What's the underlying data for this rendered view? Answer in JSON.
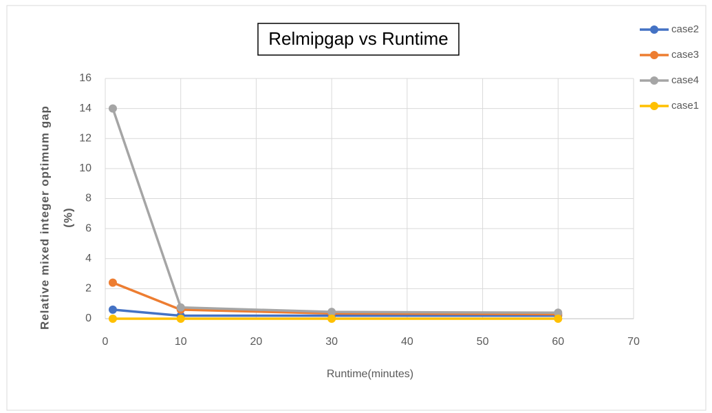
{
  "chart_data": {
    "type": "line",
    "title": "Relmipgap vs Runtime",
    "xlabel": "Runtime(minutes)",
    "ylabel": [
      "Relative mixed integer optimum gap",
      "(%)"
    ],
    "x": [
      1,
      10,
      30,
      60
    ],
    "series": [
      {
        "name": "case2",
        "color": "#4472c4",
        "values": [
          0.6,
          0.2,
          0.2,
          0.2
        ]
      },
      {
        "name": "case3",
        "color": "#ed7d31",
        "values": [
          2.4,
          0.6,
          0.35,
          0.3
        ]
      },
      {
        "name": "case4",
        "color": "#a5a5a5",
        "values": [
          14,
          0.75,
          0.45,
          0.4
        ]
      },
      {
        "name": "case1",
        "color": "#ffc000",
        "values": [
          0,
          0,
          0,
          0
        ]
      }
    ],
    "xlim": [
      0,
      70
    ],
    "xticks": [
      0,
      10,
      20,
      30,
      40,
      50,
      60,
      70
    ],
    "ylim": [
      0,
      16
    ],
    "yticks": [
      0,
      2,
      4,
      6,
      8,
      10,
      12,
      14,
      16
    ],
    "grid": true,
    "legend": "upper right"
  }
}
